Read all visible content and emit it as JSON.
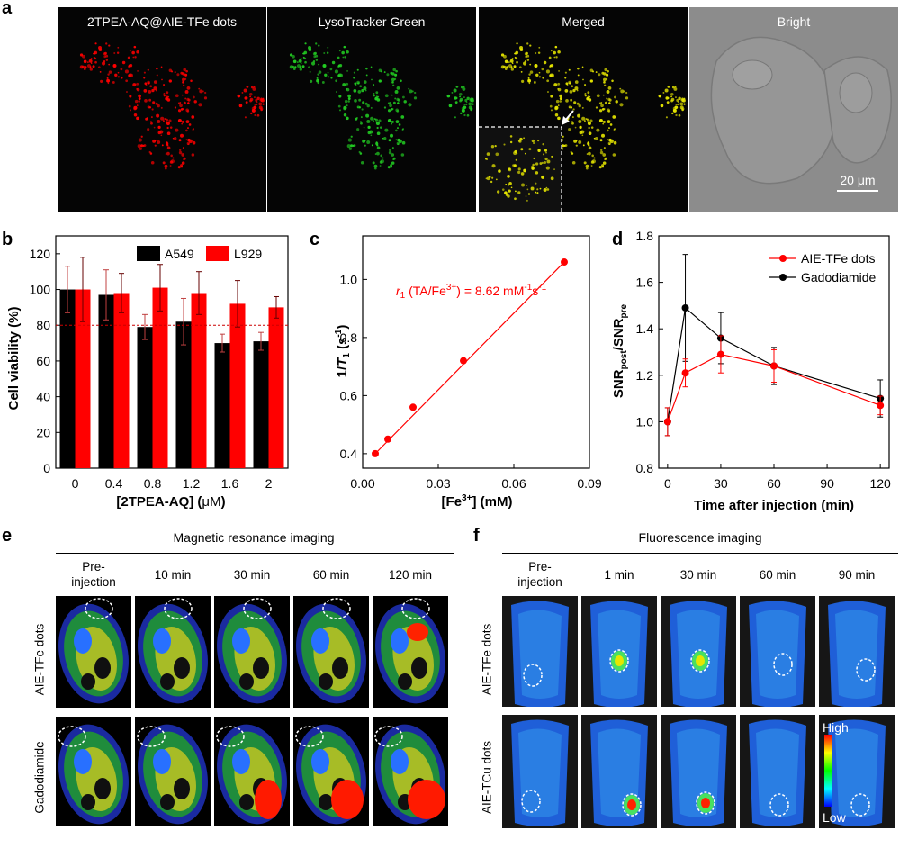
{
  "panel_labels": {
    "a": "a",
    "b": "b",
    "c": "c",
    "d": "d",
    "e": "e",
    "f": "f"
  },
  "micro": {
    "titles": [
      "2TPEA-AQ@AIE-TFe dots",
      "LysoTracker Green",
      "Merged",
      "Bright"
    ],
    "scale_bar": "20 μm"
  },
  "chart_data": [
    {
      "panel": "b",
      "type": "bar",
      "categories": [
        "0",
        "0.4",
        "0.8",
        "1.2",
        "1.6",
        "2"
      ],
      "series": [
        {
          "name": "A549",
          "color": "#000000",
          "values": [
            100,
            97,
            79,
            82,
            70,
            71
          ],
          "errors": [
            13,
            14,
            7,
            13,
            5,
            5
          ]
        },
        {
          "name": "L929",
          "color": "#ff0000",
          "values": [
            100,
            98,
            101,
            98,
            92,
            90
          ],
          "errors": [
            18,
            11,
            13,
            12,
            13,
            6
          ]
        }
      ],
      "xlabel_prefix": "[2TPEA-AQ] (",
      "xlabel_unit": "μM",
      "xlabel_suffix": ")",
      "ylabel": "Cell viability (%)",
      "ylim": [
        0,
        130
      ],
      "yticks": [
        "0",
        "20",
        "40",
        "60",
        "80",
        "100",
        "120"
      ],
      "reference_line": 80,
      "legend": "top-right"
    },
    {
      "panel": "c",
      "type": "scatter",
      "x": [
        0.005,
        0.01,
        0.02,
        0.04,
        0.08
      ],
      "y": [
        0.4,
        0.45,
        0.56,
        0.72,
        1.06
      ],
      "fit_line": {
        "x0": 0.005,
        "y0": 0.4,
        "x1": 0.08,
        "y1": 1.06
      },
      "xlabel": "[Fe3+] (mM)",
      "ylabel": "1/T1 (s-1)",
      "xlim": [
        0,
        0.09
      ],
      "ylim": [
        0.35,
        1.15
      ],
      "xticks": [
        "0.00",
        "0.03",
        "0.06",
        "0.09"
      ],
      "yticks": [
        "0.4",
        "0.6",
        "0.8",
        "1.0"
      ],
      "annotation": "r1 (TA/Fe3+) = 8.62 mM-1s-1"
    },
    {
      "panel": "d",
      "type": "line",
      "x": [
        0,
        10,
        30,
        60,
        120
      ],
      "series": [
        {
          "name": "AIE-TFe dots",
          "color": "#ff0000",
          "values": [
            1.0,
            1.21,
            1.29,
            1.24,
            1.07
          ],
          "errors": [
            0.06,
            0.06,
            0.08,
            0.07,
            0.04
          ]
        },
        {
          "name": "Gadodiamide",
          "color": "#000000",
          "values": [
            1.0,
            1.49,
            1.36,
            1.24,
            1.1
          ],
          "errors": [
            0.06,
            0.23,
            0.11,
            0.08,
            0.08
          ]
        }
      ],
      "xlabel": "Time after injection (min)",
      "ylabel": "SNRpost/SNRpre",
      "xlim": [
        -5,
        125
      ],
      "ylim": [
        0.8,
        1.8
      ],
      "xticks": [
        "0",
        "30",
        "60",
        "90",
        "120"
      ],
      "yticks": [
        "0.8",
        "1.0",
        "1.2",
        "1.4",
        "1.6",
        "1.8"
      ],
      "legend": "top-right"
    }
  ],
  "mri": {
    "title": "Magnetic resonance imaging",
    "columns": [
      {
        "line1": "Pre-",
        "line2": "injection"
      },
      {
        "line1": "10 min",
        "line2": ""
      },
      {
        "line1": "30 min",
        "line2": ""
      },
      {
        "line1": "60 min",
        "line2": ""
      },
      {
        "line1": "120 min",
        "line2": ""
      }
    ],
    "rows": [
      "AIE-TFe dots",
      "Gadodiamide"
    ]
  },
  "fluor": {
    "title": "Fluorescence imaging",
    "columns": [
      {
        "line1": "Pre-",
        "line2": "injection"
      },
      {
        "line1": "1 min",
        "line2": ""
      },
      {
        "line1": "30 min",
        "line2": ""
      },
      {
        "line1": "60 min",
        "line2": ""
      },
      {
        "line1": "90 min",
        "line2": ""
      }
    ],
    "rows": [
      "AIE-TFe dots",
      "AIE-TCu dots"
    ],
    "colorbar_high": "High",
    "colorbar_low": "Low"
  },
  "colors": {
    "red": "#ff0000",
    "green": "#22cc22",
    "yellow": "#e6e600"
  }
}
